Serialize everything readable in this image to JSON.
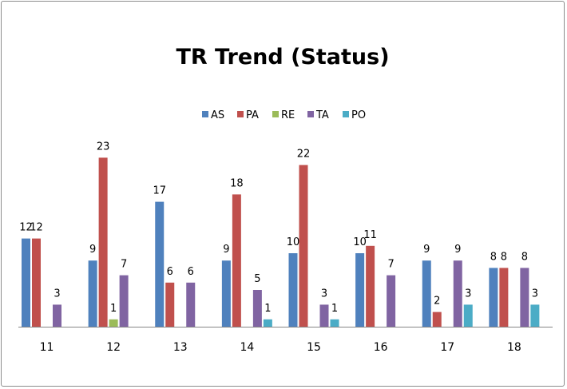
{
  "chart_data": {
    "type": "bar",
    "title": "TR Trend (Status)",
    "categories": [
      "11",
      "12",
      "13",
      "14",
      "15",
      "16",
      "17",
      "18"
    ],
    "series": [
      {
        "name": "AS",
        "color": "#4f81bd",
        "values": [
          12,
          9,
          17,
          9,
          10,
          10,
          9,
          8
        ]
      },
      {
        "name": "PA",
        "color": "#c0504d",
        "values": [
          12,
          23,
          6,
          18,
          22,
          11,
          2,
          8
        ]
      },
      {
        "name": "RE",
        "color": "#9bbb59",
        "values": [
          null,
          1,
          null,
          null,
          null,
          null,
          null,
          null
        ]
      },
      {
        "name": "TA",
        "color": "#8064a2",
        "values": [
          3,
          7,
          6,
          5,
          3,
          7,
          9,
          8
        ]
      },
      {
        "name": "PO",
        "color": "#4bacc6",
        "values": [
          null,
          null,
          null,
          1,
          1,
          null,
          3,
          3
        ]
      }
    ],
    "ylim": [
      0,
      25
    ],
    "legend_position": "top",
    "grid": false,
    "xlabel": "",
    "ylabel": ""
  }
}
